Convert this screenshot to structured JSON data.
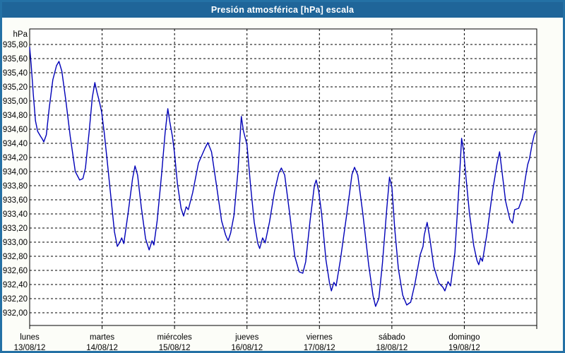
{
  "window": {
    "title": "Presión atmosférica [hPa] escala"
  },
  "colors": {
    "titlebar_bg": "#1f6599",
    "window_border": "#2471a5",
    "panel_bg": "#fcfdf8",
    "plot_bg": "#ffffff",
    "plot_border": "#000000",
    "grid": "#000000",
    "text": "#000000",
    "title_text": "#ffffff",
    "line": "#0000b8"
  },
  "chart_data": {
    "type": "line",
    "title": "Presión atmosférica [hPa] escala",
    "legend": "none",
    "grid": {
      "horizontal": "dashed",
      "vertical": "dashed at day boundaries"
    },
    "y_axis": {
      "unit_label": "hPa",
      "min": 932.0,
      "max": 935.8,
      "step": 0.2,
      "decimal_separator": ",",
      "tick_labels": [
        "935,80",
        "935,60",
        "935,40",
        "935,20",
        "935,00",
        "934,80",
        "934,60",
        "934,40",
        "934,20",
        "934,00",
        "933,80",
        "933,60",
        "933,40",
        "933,20",
        "933,00",
        "932,80",
        "932,60",
        "932,40",
        "932,20",
        "932,00"
      ]
    },
    "x_axis": {
      "unit": "days",
      "range_days": 7,
      "days": [
        {
          "name": "lunes",
          "date": "13/08/12"
        },
        {
          "name": "martes",
          "date": "14/08/12"
        },
        {
          "name": "miércoles",
          "date": "15/08/12"
        },
        {
          "name": "jueves",
          "date": "16/08/12"
        },
        {
          "name": "viernes",
          "date": "17/08/12"
        },
        {
          "name": "sábado",
          "date": "18/08/12"
        },
        {
          "name": "domingo",
          "date": "19/08/12"
        }
      ]
    },
    "series": [
      {
        "name": "presión atmosférica [hPa]",
        "color": "#0000b8",
        "points": [
          [
            0.0,
            935.76
          ],
          [
            0.02,
            935.52
          ],
          [
            0.05,
            935.1
          ],
          [
            0.08,
            934.72
          ],
          [
            0.11,
            934.57
          ],
          [
            0.15,
            934.5
          ],
          [
            0.175,
            934.46
          ],
          [
            0.195,
            934.42
          ],
          [
            0.23,
            934.52
          ],
          [
            0.27,
            934.9
          ],
          [
            0.32,
            935.3
          ],
          [
            0.37,
            935.5
          ],
          [
            0.405,
            935.56
          ],
          [
            0.445,
            935.42
          ],
          [
            0.5,
            935.0
          ],
          [
            0.56,
            934.5
          ],
          [
            0.63,
            934.0
          ],
          [
            0.69,
            933.88
          ],
          [
            0.735,
            933.9
          ],
          [
            0.77,
            934.05
          ],
          [
            0.82,
            934.55
          ],
          [
            0.865,
            935.05
          ],
          [
            0.9,
            935.26
          ],
          [
            0.93,
            935.12
          ],
          [
            0.96,
            935.0
          ],
          [
            0.992,
            934.85
          ],
          [
            1.03,
            934.55
          ],
          [
            1.07,
            934.15
          ],
          [
            1.12,
            933.65
          ],
          [
            1.17,
            933.15
          ],
          [
            1.21,
            932.94
          ],
          [
            1.245,
            933.0
          ],
          [
            1.27,
            933.06
          ],
          [
            1.3,
            932.98
          ],
          [
            1.36,
            933.42
          ],
          [
            1.42,
            933.9
          ],
          [
            1.455,
            934.08
          ],
          [
            1.49,
            933.95
          ],
          [
            1.54,
            933.5
          ],
          [
            1.6,
            933.05
          ],
          [
            1.65,
            932.89
          ],
          [
            1.69,
            933.02
          ],
          [
            1.715,
            932.96
          ],
          [
            1.76,
            933.3
          ],
          [
            1.82,
            933.95
          ],
          [
            1.87,
            934.55
          ],
          [
            1.907,
            934.89
          ],
          [
            1.935,
            934.7
          ],
          [
            1.97,
            934.5
          ],
          [
            2.0,
            934.26
          ],
          [
            2.04,
            933.83
          ],
          [
            2.09,
            933.48
          ],
          [
            2.125,
            933.37
          ],
          [
            2.16,
            933.5
          ],
          [
            2.19,
            933.46
          ],
          [
            2.25,
            933.7
          ],
          [
            2.33,
            934.12
          ],
          [
            2.42,
            934.33
          ],
          [
            2.46,
            934.41
          ],
          [
            2.51,
            934.28
          ],
          [
            2.58,
            933.8
          ],
          [
            2.65,
            933.3
          ],
          [
            2.705,
            933.1
          ],
          [
            2.74,
            933.02
          ],
          [
            2.775,
            933.13
          ],
          [
            2.82,
            933.38
          ],
          [
            2.875,
            934.0
          ],
          [
            2.922,
            934.78
          ],
          [
            2.95,
            934.58
          ],
          [
            3.0,
            934.38
          ],
          [
            3.05,
            933.8
          ],
          [
            3.1,
            933.28
          ],
          [
            3.15,
            932.98
          ],
          [
            3.175,
            932.91
          ],
          [
            3.215,
            933.06
          ],
          [
            3.25,
            932.99
          ],
          [
            3.31,
            933.28
          ],
          [
            3.38,
            933.72
          ],
          [
            3.44,
            933.98
          ],
          [
            3.475,
            934.05
          ],
          [
            3.52,
            933.95
          ],
          [
            3.59,
            933.4
          ],
          [
            3.66,
            932.8
          ],
          [
            3.72,
            932.58
          ],
          [
            3.77,
            932.56
          ],
          [
            3.81,
            932.72
          ],
          [
            3.87,
            933.3
          ],
          [
            3.93,
            933.8
          ],
          [
            3.955,
            933.88
          ],
          [
            3.99,
            933.72
          ],
          [
            4.03,
            933.4
          ],
          [
            4.09,
            932.75
          ],
          [
            4.14,
            932.42
          ],
          [
            4.165,
            932.31
          ],
          [
            4.2,
            932.43
          ],
          [
            4.23,
            932.38
          ],
          [
            4.29,
            932.75
          ],
          [
            4.38,
            933.42
          ],
          [
            4.45,
            933.96
          ],
          [
            4.485,
            934.06
          ],
          [
            4.53,
            933.95
          ],
          [
            4.6,
            933.4
          ],
          [
            4.68,
            932.68
          ],
          [
            4.74,
            932.24
          ],
          [
            4.775,
            932.09
          ],
          [
            4.82,
            932.2
          ],
          [
            4.87,
            932.7
          ],
          [
            4.93,
            933.48
          ],
          [
            4.967,
            933.92
          ],
          [
            5.0,
            933.78
          ],
          [
            5.04,
            933.18
          ],
          [
            5.09,
            932.62
          ],
          [
            5.15,
            932.25
          ],
          [
            5.205,
            932.11
          ],
          [
            5.26,
            932.15
          ],
          [
            5.32,
            932.42
          ],
          [
            5.39,
            932.82
          ],
          [
            5.43,
            932.94
          ],
          [
            5.447,
            933.1
          ],
          [
            5.487,
            933.28
          ],
          [
            5.52,
            933.08
          ],
          [
            5.58,
            932.65
          ],
          [
            5.65,
            932.42
          ],
          [
            5.705,
            932.36
          ],
          [
            5.732,
            932.31
          ],
          [
            5.775,
            932.44
          ],
          [
            5.81,
            932.38
          ],
          [
            5.87,
            932.85
          ],
          [
            5.93,
            933.85
          ],
          [
            5.963,
            934.47
          ],
          [
            5.99,
            934.3
          ],
          [
            6.02,
            933.95
          ],
          [
            6.07,
            933.42
          ],
          [
            6.13,
            932.95
          ],
          [
            6.175,
            932.74
          ],
          [
            6.2,
            932.68
          ],
          [
            6.225,
            932.78
          ],
          [
            6.25,
            932.73
          ],
          [
            6.31,
            933.1
          ],
          [
            6.39,
            933.72
          ],
          [
            6.45,
            934.1
          ],
          [
            6.487,
            934.28
          ],
          [
            6.52,
            934.0
          ],
          [
            6.57,
            933.58
          ],
          [
            6.63,
            933.32
          ],
          [
            6.665,
            933.27
          ],
          [
            6.695,
            933.46
          ],
          [
            6.75,
            933.48
          ],
          [
            6.8,
            933.62
          ],
          [
            6.845,
            933.92
          ],
          [
            6.875,
            934.1
          ],
          [
            6.9,
            934.18
          ],
          [
            6.935,
            934.38
          ],
          [
            6.965,
            934.52
          ],
          [
            6.985,
            934.57
          ]
        ]
      }
    ]
  }
}
